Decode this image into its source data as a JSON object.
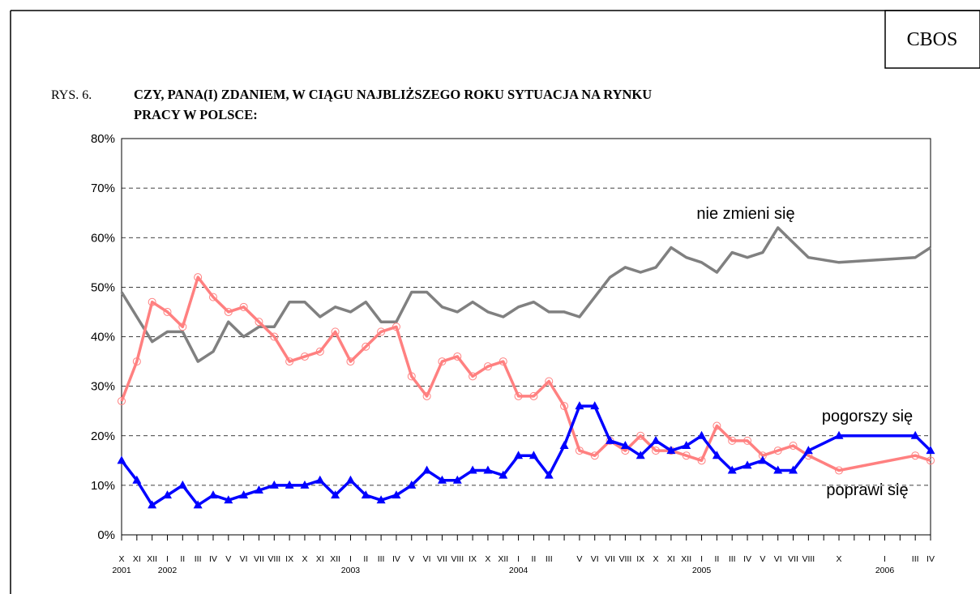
{
  "chart_data": {
    "type": "line",
    "header_label": "RYS. 6.",
    "title_lines": [
      "CZY, PANA(I) ZDANIEM, W CIĄGU NAJBLIŻSZEGO ROKU SYTUACJA NA RYNKU",
      "PRACY W POLSCE:"
    ],
    "badge": "CBOS",
    "categories": [
      "X",
      "XI",
      "XII",
      "I",
      "II",
      "III",
      "IV",
      "V",
      "VI",
      "VII",
      "VIII",
      "IX",
      "X",
      "XI",
      "XII",
      "I",
      "II",
      "III",
      "IV",
      "V",
      "VI",
      "VII",
      "VIII",
      "IX",
      "X",
      "XII",
      "I",
      "II",
      "III",
      null,
      "V",
      "VI",
      "VII",
      "VIII",
      "IX",
      "X",
      "XI",
      "XII",
      "I",
      "II",
      "III",
      "IV",
      "V",
      "VI",
      "VII",
      "VIII",
      null,
      "X",
      null,
      null,
      "I",
      null,
      "III",
      "IV"
    ],
    "years": [
      "2001",
      null,
      null,
      "2002",
      null,
      null,
      null,
      null,
      null,
      null,
      null,
      null,
      null,
      null,
      null,
      "2003",
      null,
      null,
      null,
      null,
      null,
      null,
      null,
      null,
      null,
      null,
      "2004",
      null,
      null,
      null,
      null,
      null,
      null,
      null,
      null,
      null,
      null,
      null,
      "2005",
      null,
      null,
      null,
      null,
      null,
      null,
      null,
      null,
      null,
      null,
      null,
      "2006",
      null,
      null,
      null
    ],
    "ylim": [
      0,
      80
    ],
    "yticks": [
      {
        "value": 0,
        "label": "0%"
      },
      {
        "value": 10,
        "label": "10%"
      },
      {
        "value": 20,
        "label": "20%"
      },
      {
        "value": 30,
        "label": "30%"
      },
      {
        "value": 40,
        "label": "40%"
      },
      {
        "value": 50,
        "label": "50%"
      },
      {
        "value": 60,
        "label": "60%"
      },
      {
        "value": 70,
        "label": "70%"
      },
      {
        "value": 80,
        "label": "80%"
      }
    ],
    "grid": true,
    "connect_gaps": true,
    "series": [
      {
        "name": "nie zmieni się",
        "color": "#808080",
        "marker": "none",
        "values": [
          49,
          44,
          39,
          41,
          41,
          35,
          37,
          43,
          40,
          42,
          42,
          47,
          47,
          44,
          46,
          45,
          47,
          43,
          43,
          49,
          49,
          46,
          45,
          47,
          45,
          44,
          46,
          47,
          45,
          45,
          44,
          48,
          52,
          54,
          53,
          54,
          58,
          56,
          55,
          53,
          57,
          56,
          57,
          62,
          59,
          56,
          null,
          55,
          null,
          null,
          null,
          null,
          56,
          58
        ]
      },
      {
        "name": "pogorszy się",
        "color": "#ff8080",
        "marker": "circle",
        "values": [
          27,
          35,
          47,
          45,
          42,
          52,
          48,
          45,
          46,
          43,
          40,
          35,
          36,
          37,
          41,
          35,
          38,
          41,
          42,
          32,
          28,
          35,
          36,
          32,
          34,
          35,
          28,
          28,
          31,
          26,
          17,
          16,
          19,
          17,
          20,
          17,
          17,
          16,
          15,
          22,
          19,
          19,
          16,
          17,
          18,
          16,
          null,
          13,
          null,
          null,
          null,
          null,
          16,
          15
        ]
      },
      {
        "name": "poprawi się",
        "color": "#0000ff",
        "marker": "triangle",
        "values": [
          15,
          11,
          6,
          8,
          10,
          6,
          8,
          7,
          8,
          9,
          10,
          10,
          10,
          11,
          8,
          11,
          8,
          7,
          8,
          10,
          13,
          11,
          11,
          13,
          13,
          12,
          16,
          16,
          12,
          18,
          26,
          26,
          19,
          18,
          16,
          19,
          17,
          18,
          20,
          16,
          13,
          14,
          15,
          13,
          13,
          17,
          null,
          20,
          null,
          null,
          null,
          null,
          20,
          17
        ]
      }
    ]
  }
}
